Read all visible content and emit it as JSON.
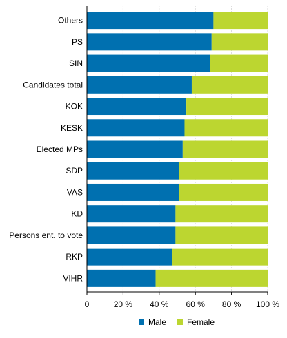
{
  "chart_data": {
    "type": "bar",
    "orientation": "horizontal",
    "stacked": "percent",
    "categories": [
      "Others",
      "PS",
      "SIN",
      "Candidates total",
      "KOK",
      "KESK",
      "Elected MPs",
      "SDP",
      "VAS",
      "KD",
      "Persons ent. to vote",
      "RKP",
      "VIHR"
    ],
    "series": [
      {
        "name": "Male",
        "color": "#0070b0",
        "values": [
          70,
          69,
          68,
          58,
          55,
          54,
          53,
          51,
          51,
          49,
          49,
          47,
          38
        ]
      },
      {
        "name": "Female",
        "color": "#bcd630",
        "values": [
          30,
          31,
          32,
          42,
          45,
          46,
          47,
          49,
          49,
          51,
          51,
          53,
          62
        ]
      }
    ],
    "xticks": [
      "0",
      "20 %",
      "40 %",
      "60 %",
      "80 %",
      "100 %"
    ],
    "xlim": [
      0,
      100
    ],
    "grid": "vertical",
    "legend": "bottom"
  }
}
